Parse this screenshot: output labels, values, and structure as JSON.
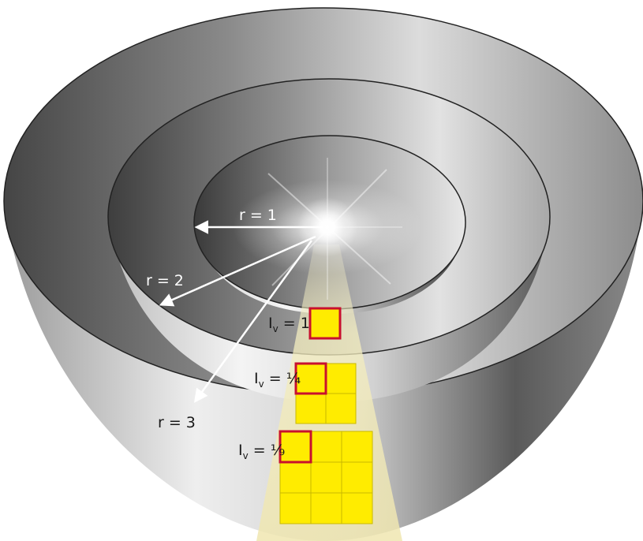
{
  "radii": [
    {
      "label": "r = 1",
      "r": 1
    },
    {
      "label": "r = 2",
      "r": 2
    },
    {
      "label": "r = 3",
      "r": 3
    }
  ],
  "intensity": [
    {
      "main": "I",
      "sub": "v",
      "eq": " = ",
      "value": "1"
    },
    {
      "main": "I",
      "sub": "v",
      "eq": " = ",
      "value": "¼"
    },
    {
      "main": "I",
      "sub": "v",
      "eq": " = ",
      "value": "⅑"
    }
  ],
  "colors": {
    "cell_fill": "#ffec00",
    "highlight": "#c8102e",
    "cone": "#f4efc2"
  }
}
